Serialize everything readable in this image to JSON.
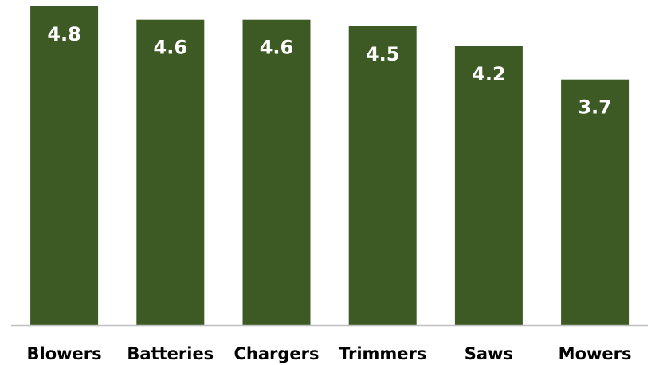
{
  "chart_data": {
    "type": "bar",
    "categories": [
      "Blowers",
      "Batteries",
      "Chargers",
      "Trimmers",
      "Saws",
      "Mowers"
    ],
    "values": [
      4.8,
      4.6,
      4.6,
      4.5,
      4.2,
      3.7
    ],
    "data_labels": [
      "4.8",
      "4.6",
      "4.6",
      "4.5",
      "4.2",
      "3.7"
    ],
    "title": "",
    "xlabel": "",
    "ylabel": "",
    "ylim": [
      0,
      4.8
    ],
    "grid": false,
    "legend": "none",
    "colors": {
      "bar": "#3d5a24",
      "data_label": "#ffffff",
      "axis": "#bfbfbf",
      "category_text": "#000000"
    }
  }
}
